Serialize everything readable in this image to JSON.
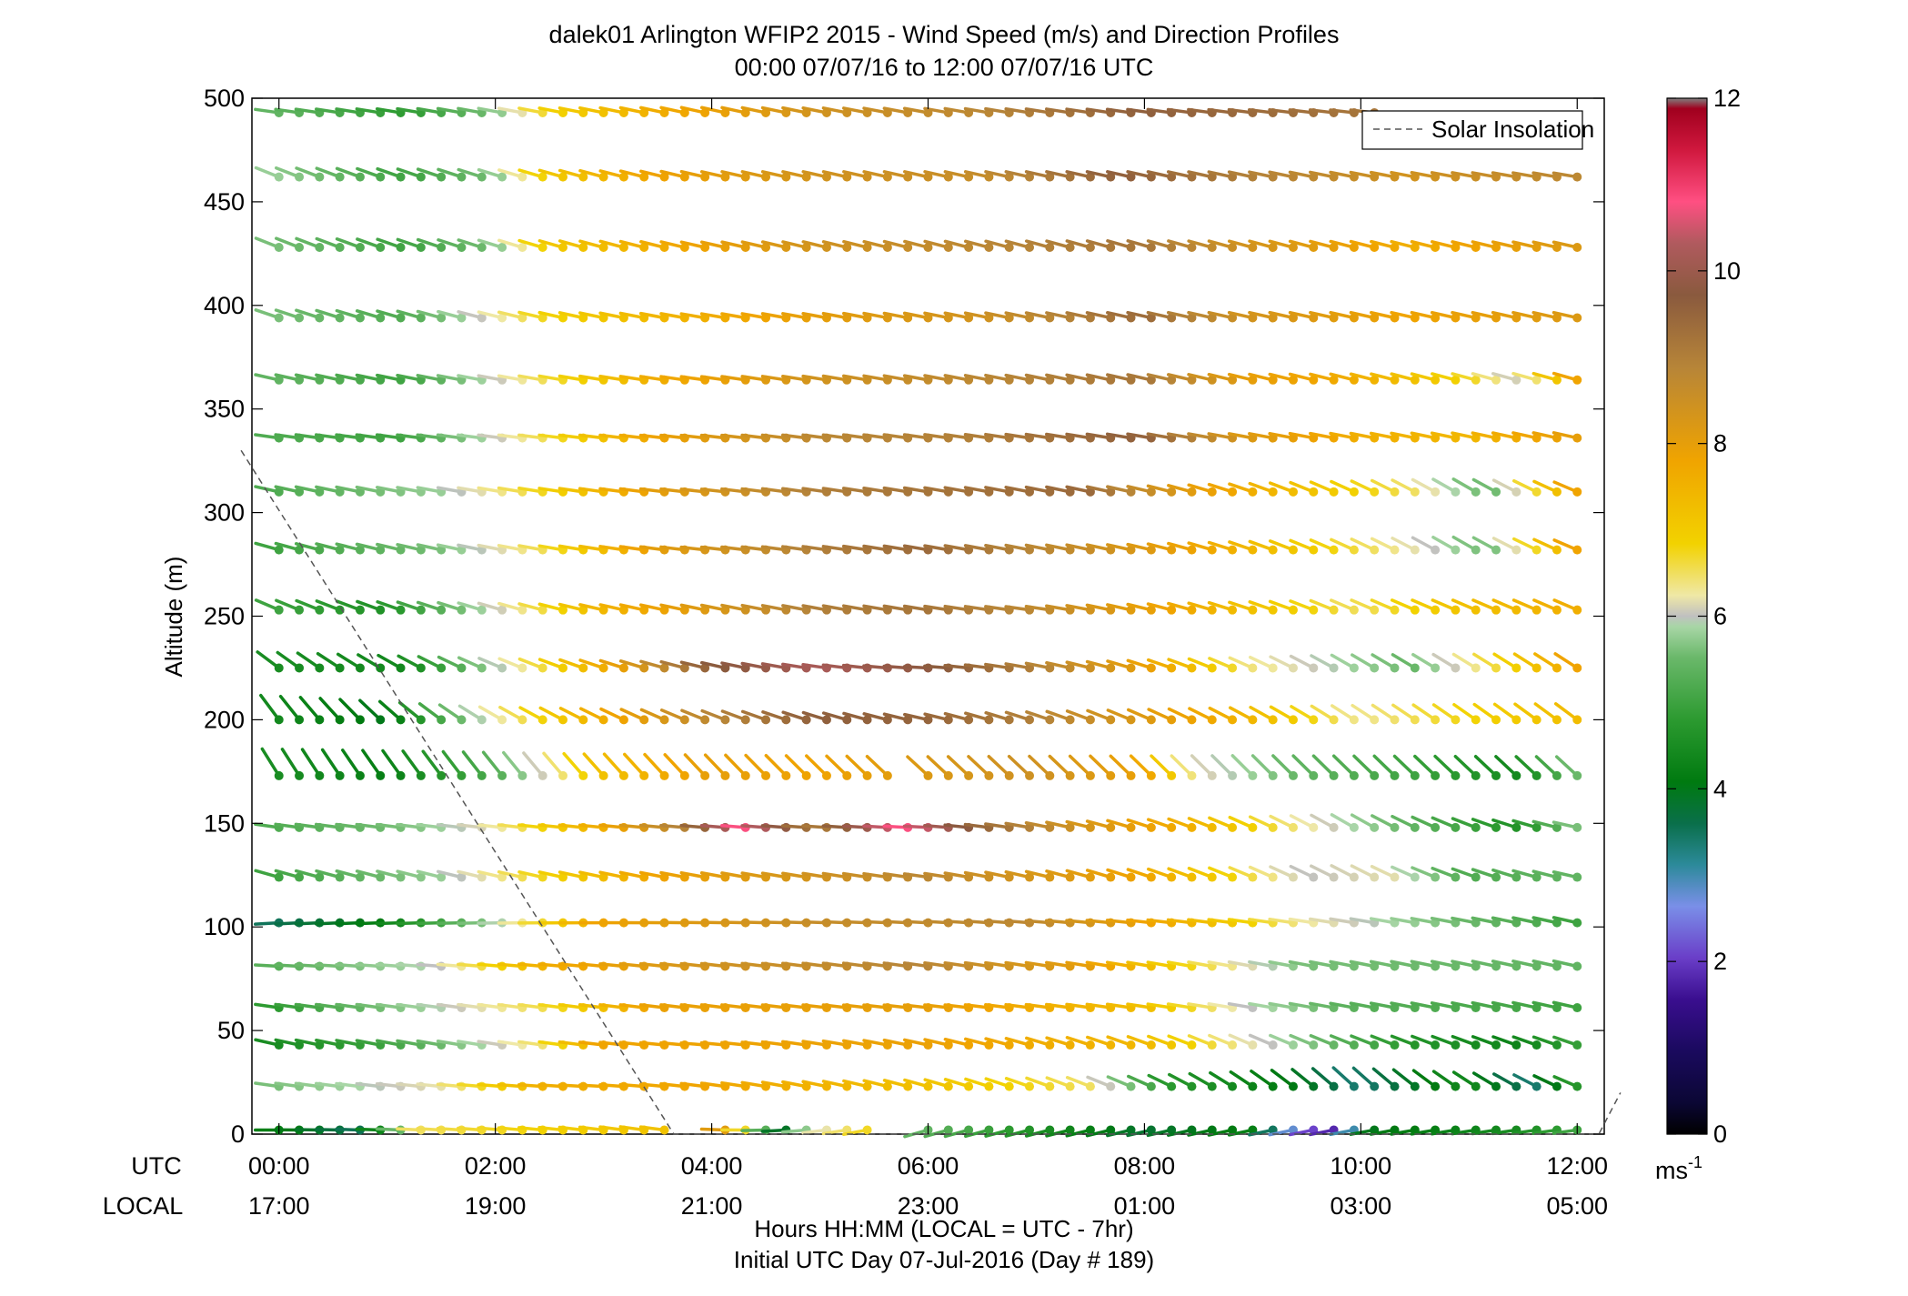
{
  "chart_data": {
    "type": "scatter",
    "title": "dalek01 Arlington WFIP2 2015 - Wind Speed (m/s) and Direction Profiles",
    "subtitle": "00:00 07/07/16 to 12:00 07/07/16  UTC",
    "ylabel": "Altitude (m)",
    "xlabel": "Hours HH:MM  (LOCAL = UTC - 7hr)",
    "xlabel2": "Initial UTC Day 07-Jul-2016 (Day # 189)",
    "ylim": [
      0,
      500
    ],
    "yticks": [
      "0",
      "50",
      "100",
      "150",
      "200",
      "250",
      "300",
      "350",
      "400",
      "450",
      "500"
    ],
    "xlim": [
      -0.25,
      12.25
    ],
    "xticks_utc": [
      "00:00",
      "02:00",
      "04:00",
      "06:00",
      "08:00",
      "10:00",
      "12:00"
    ],
    "xticks_local": [
      "17:00",
      "19:00",
      "21:00",
      "23:00",
      "01:00",
      "03:00",
      "05:00"
    ],
    "row_label_utc": "UTC",
    "row_label_local": "LOCAL",
    "legend": {
      "label": "Solar Insolation",
      "position": "top-right"
    },
    "colorbar": {
      "range": [
        0,
        12
      ],
      "ticks": [
        "0",
        "2",
        "4",
        "6",
        "8",
        "10",
        "12"
      ],
      "unit": "ms",
      "unit_exp": "-1"
    },
    "solar_insolation_line": [
      [
        -0.35,
        330
      ],
      [
        3.65,
        0
      ],
      [
        12.2,
        0
      ],
      [
        12.4,
        20
      ]
    ],
    "altitudes": [
      2,
      23,
      43,
      61,
      81,
      102,
      124,
      148,
      173,
      200,
      225,
      253,
      282,
      310,
      336,
      364,
      394,
      428,
      462,
      493
    ],
    "time_step_hours": 0.1875,
    "time_start": 0,
    "time_end": 12,
    "gaps": [
      {
        "altitude": 173,
        "from": 5.7,
        "to": 5.95
      },
      {
        "altitude": 2,
        "from": 3.7,
        "to": 3.95
      },
      {
        "altitude": 2,
        "from": 5.55,
        "to": 5.9
      }
    ],
    "speed_profiles_by_altitude": {
      "2": [
        [
          0,
          4.2
        ],
        [
          0.8,
          3.5
        ],
        [
          1.3,
          6.5
        ],
        [
          3.6,
          7.2
        ],
        [
          3.9,
          9.8
        ],
        [
          4.7,
          3.8
        ],
        [
          4.9,
          6.0
        ],
        [
          5.5,
          6.8
        ],
        [
          6.0,
          5.4
        ],
        [
          8.0,
          3.8
        ],
        [
          9.0,
          4.2
        ],
        [
          9.7,
          1.5
        ],
        [
          10.1,
          4.0
        ],
        [
          11.5,
          4.5
        ],
        [
          12,
          5.0
        ]
      ],
      "23": [
        [
          0,
          5.6
        ],
        [
          1.5,
          6.2
        ],
        [
          2.5,
          7.6
        ],
        [
          4,
          7.8
        ],
        [
          6,
          7.2
        ],
        [
          7.5,
          6.5
        ],
        [
          8.2,
          4.8
        ],
        [
          9.5,
          4.0
        ],
        [
          10.0,
          3.3
        ],
        [
          11.0,
          4.5
        ],
        [
          11.6,
          3.3
        ],
        [
          12,
          4.7
        ]
      ],
      "43": [
        [
          0,
          4.5
        ],
        [
          1,
          5.0
        ],
        [
          2.5,
          6.5
        ],
        [
          3,
          7.8
        ],
        [
          6,
          7.9
        ],
        [
          8,
          7.4
        ],
        [
          9,
          6.2
        ],
        [
          10.5,
          4.7
        ],
        [
          11.5,
          4.3
        ],
        [
          12,
          4.9
        ]
      ],
      "61": [
        [
          0,
          4.8
        ],
        [
          1,
          5.6
        ],
        [
          2.5,
          6.6
        ],
        [
          3.5,
          7.9
        ],
        [
          6,
          8.0
        ],
        [
          8,
          7.3
        ],
        [
          9,
          6.0
        ],
        [
          10,
          5.3
        ],
        [
          12,
          5.0
        ]
      ],
      "81": [
        [
          0,
          5.3
        ],
        [
          1.5,
          6.0
        ],
        [
          2.5,
          7.6
        ],
        [
          4,
          8.4
        ],
        [
          6,
          8.9
        ],
        [
          7.5,
          8.0
        ],
        [
          8.5,
          6.7
        ],
        [
          9.5,
          5.6
        ],
        [
          12,
          5.4
        ]
      ],
      "102": [
        [
          0,
          3.5
        ],
        [
          1,
          4.2
        ],
        [
          2,
          5.8
        ],
        [
          3,
          7.8
        ],
        [
          5,
          8.6
        ],
        [
          7,
          8.8
        ],
        [
          8.5,
          7.4
        ],
        [
          9.5,
          6.3
        ],
        [
          12,
          5.0
        ]
      ],
      "124": [
        [
          0,
          5.0
        ],
        [
          1.5,
          5.8
        ],
        [
          2.5,
          6.8
        ],
        [
          3.5,
          7.8
        ],
        [
          5,
          8.4
        ],
        [
          6,
          8.8
        ],
        [
          8,
          7.8
        ],
        [
          9.5,
          6.0
        ],
        [
          10.3,
          6.2
        ],
        [
          11,
          5.2
        ],
        [
          12,
          5.4
        ]
      ],
      "148": [
        [
          0,
          5.2
        ],
        [
          1.2,
          5.6
        ],
        [
          2,
          6.2
        ],
        [
          3,
          7.6
        ],
        [
          3.8,
          9.0
        ],
        [
          4.3,
          10.8
        ],
        [
          5,
          9.0
        ],
        [
          5.8,
          10.8
        ],
        [
          6.5,
          9.5
        ],
        [
          7.5,
          8.3
        ],
        [
          8.5,
          7.5
        ],
        [
          9.5,
          6.3
        ],
        [
          10.5,
          5.4
        ],
        [
          11.5,
          4.6
        ],
        [
          12,
          5.6
        ]
      ],
      "173": [
        [
          0,
          4.5
        ],
        [
          1,
          4.2
        ],
        [
          2,
          5.2
        ],
        [
          3,
          7.2
        ],
        [
          4,
          8.0
        ],
        [
          5,
          7.8
        ],
        [
          6,
          8.2
        ],
        [
          7,
          8.5
        ],
        [
          8,
          7.9
        ],
        [
          8.5,
          6.2
        ],
        [
          9.5,
          5.4
        ],
        [
          10.5,
          5.0
        ],
        [
          11.5,
          4.4
        ],
        [
          12,
          5.5
        ]
      ],
      "200": [
        [
          0,
          4.4
        ],
        [
          1,
          4.0
        ],
        [
          2,
          6.2
        ],
        [
          3,
          7.6
        ],
        [
          4,
          8.8
        ],
        [
          5,
          9.6
        ],
        [
          6,
          9.5
        ],
        [
          7,
          9.0
        ],
        [
          8,
          8.2
        ],
        [
          9,
          7.4
        ],
        [
          10,
          6.3
        ],
        [
          11,
          6.8
        ],
        [
          12,
          7.3
        ]
      ],
      "225": [
        [
          0,
          4.5
        ],
        [
          1.2,
          4.4
        ],
        [
          2.2,
          6.2
        ],
        [
          3,
          7.6
        ],
        [
          4,
          9.6
        ],
        [
          5,
          10.2
        ],
        [
          6,
          9.8
        ],
        [
          7,
          9.0
        ],
        [
          8,
          8.0
        ],
        [
          9,
          6.4
        ],
        [
          10,
          5.8
        ],
        [
          10.5,
          5.5
        ],
        [
          11.5,
          7.0
        ],
        [
          12,
          7.8
        ]
      ],
      "253": [
        [
          0,
          5.0
        ],
        [
          1,
          4.6
        ],
        [
          2,
          6.0
        ],
        [
          3,
          7.4
        ],
        [
          4,
          8.2
        ],
        [
          5,
          9.0
        ],
        [
          6,
          9.2
        ],
        [
          7,
          8.8
        ],
        [
          8,
          8.0
        ],
        [
          9,
          7.2
        ],
        [
          10,
          6.5
        ],
        [
          11,
          7.2
        ],
        [
          12,
          7.6
        ]
      ],
      "282": [
        [
          0,
          5.0
        ],
        [
          1.5,
          5.6
        ],
        [
          2.5,
          6.6
        ],
        [
          3.5,
          8.0
        ],
        [
          5,
          9.0
        ],
        [
          6,
          9.4
        ],
        [
          7.5,
          8.6
        ],
        [
          8.5,
          7.8
        ],
        [
          9.5,
          7.0
        ],
        [
          10.5,
          6.2
        ],
        [
          11.2,
          5.5
        ],
        [
          12,
          7.8
        ]
      ],
      "310": [
        [
          0,
          5.2
        ],
        [
          1.5,
          5.8
        ],
        [
          2.5,
          6.8
        ],
        [
          3.5,
          8.0
        ],
        [
          5,
          9.0
        ],
        [
          6,
          9.2
        ],
        [
          7.5,
          9.4
        ],
        [
          8.5,
          8.0
        ],
        [
          9.5,
          7.2
        ],
        [
          10.5,
          6.5
        ],
        [
          11.2,
          5.4
        ],
        [
          12,
          7.8
        ]
      ],
      "336": [
        [
          0,
          5.2
        ],
        [
          1.2,
          5.0
        ],
        [
          2.5,
          6.6
        ],
        [
          3.5,
          7.8
        ],
        [
          5,
          8.8
        ],
        [
          6.5,
          9.0
        ],
        [
          8,
          9.6
        ],
        [
          9,
          8.2
        ],
        [
          10,
          7.6
        ],
        [
          11,
          7.4
        ],
        [
          12,
          8.0
        ]
      ],
      "364": [
        [
          0,
          5.4
        ],
        [
          1.2,
          5.0
        ],
        [
          2.5,
          6.6
        ],
        [
          3.5,
          7.6
        ],
        [
          5,
          8.4
        ],
        [
          6.5,
          8.8
        ],
        [
          8,
          9.2
        ],
        [
          9,
          8.0
        ],
        [
          10,
          7.6
        ],
        [
          11,
          6.8
        ],
        [
          11.5,
          6.0
        ],
        [
          12,
          7.8
        ]
      ],
      "394": [
        [
          0,
          5.6
        ],
        [
          1.2,
          5.2
        ],
        [
          2.5,
          6.8
        ],
        [
          3.5,
          7.4
        ],
        [
          5,
          8.0
        ],
        [
          6.5,
          8.4
        ],
        [
          8,
          9.4
        ],
        [
          9,
          8.4
        ],
        [
          10.5,
          7.8
        ],
        [
          12,
          8.2
        ]
      ],
      "428": [
        [
          0,
          5.6
        ],
        [
          1.2,
          5.0
        ],
        [
          2,
          5.6
        ],
        [
          2.5,
          7.0
        ],
        [
          3.5,
          7.6
        ],
        [
          5,
          8.4
        ],
        [
          6.5,
          8.8
        ],
        [
          8,
          9.2
        ],
        [
          9,
          8.4
        ],
        [
          10.5,
          7.6
        ],
        [
          12,
          8.2
        ]
      ],
      "462": [
        [
          0,
          5.8
        ],
        [
          1.2,
          5.0
        ],
        [
          2,
          5.6
        ],
        [
          2.5,
          7.0
        ],
        [
          3.5,
          7.8
        ],
        [
          5,
          8.4
        ],
        [
          6.5,
          8.6
        ],
        [
          7.8,
          9.6
        ],
        [
          9,
          9.0
        ],
        [
          10.5,
          8.4
        ],
        [
          12,
          8.8
        ]
      ],
      "493": [
        [
          0,
          5.4
        ],
        [
          1.2,
          4.8
        ],
        [
          2,
          5.6
        ],
        [
          2.5,
          6.8
        ],
        [
          3.5,
          7.6
        ],
        [
          5,
          8.4
        ],
        [
          6.5,
          8.8
        ],
        [
          8,
          9.6
        ],
        [
          9,
          9.4
        ],
        [
          10,
          9.2
        ],
        [
          10.2,
          9.2
        ]
      ]
    },
    "direction_profiles_by_altitude": {
      "2": [
        [
          0,
          270
        ],
        [
          3.5,
          265
        ],
        [
          6,
          280
        ],
        [
          12,
          275
        ]
      ],
      "23": [
        [
          0,
          265
        ],
        [
          3,
          268
        ],
        [
          8,
          255
        ],
        [
          10,
          240
        ],
        [
          12,
          255
        ]
      ],
      "43": [
        [
          0,
          262
        ],
        [
          4,
          267
        ],
        [
          9,
          255
        ],
        [
          12,
          258
        ]
      ],
      "61": [
        [
          0,
          265
        ],
        [
          6,
          266
        ],
        [
          12,
          262
        ]
      ],
      "81": [
        [
          0,
          268
        ],
        [
          6,
          265
        ],
        [
          12,
          262
        ]
      ],
      "102": [
        [
          0,
          272
        ],
        [
          6,
          268
        ],
        [
          12,
          262
        ]
      ],
      "124": [
        [
          0,
          260
        ],
        [
          6,
          265
        ],
        [
          10,
          252
        ],
        [
          12,
          262
        ]
      ],
      "148": [
        [
          0,
          265
        ],
        [
          6,
          268
        ],
        [
          10,
          250
        ],
        [
          12,
          262
        ]
      ],
      "173": [
        [
          0,
          225
        ],
        [
          3,
          235
        ],
        [
          6,
          240
        ],
        [
          9,
          238
        ],
        [
          12,
          240
        ]
      ],
      "200": [
        [
          0,
          230
        ],
        [
          2,
          250
        ],
        [
          6,
          262
        ],
        [
          10,
          248
        ],
        [
          12,
          245
        ]
      ],
      "225": [
        [
          0,
          245
        ],
        [
          2,
          255
        ],
        [
          6,
          268
        ],
        [
          10,
          250
        ],
        [
          12,
          248
        ]
      ],
      "253": [
        [
          0,
          255
        ],
        [
          3,
          262
        ],
        [
          7,
          265
        ],
        [
          10,
          255
        ],
        [
          12,
          255
        ]
      ],
      "282": [
        [
          0,
          260
        ],
        [
          4,
          266
        ],
        [
          8,
          262
        ],
        [
          11,
          250
        ],
        [
          12,
          255
        ]
      ],
      "310": [
        [
          0,
          262
        ],
        [
          4,
          266
        ],
        [
          8,
          262
        ],
        [
          11,
          250
        ],
        [
          12,
          255
        ]
      ],
      "336": [
        [
          0,
          265
        ],
        [
          4,
          266
        ],
        [
          8,
          264
        ],
        [
          12,
          262
        ]
      ],
      "364": [
        [
          0,
          262
        ],
        [
          4,
          265
        ],
        [
          8,
          262
        ],
        [
          12,
          260
        ]
      ],
      "394": [
        [
          0,
          258
        ],
        [
          4,
          264
        ],
        [
          8,
          262
        ],
        [
          12,
          262
        ]
      ],
      "428": [
        [
          0,
          256
        ],
        [
          4,
          262
        ],
        [
          8,
          260
        ],
        [
          12,
          262
        ]
      ],
      "462": [
        [
          0,
          256
        ],
        [
          4,
          262
        ],
        [
          8,
          262
        ],
        [
          12,
          264
        ]
      ],
      "493": [
        [
          0,
          265
        ],
        [
          4,
          262
        ],
        [
          8,
          265
        ],
        [
          10.2,
          266
        ]
      ]
    }
  }
}
